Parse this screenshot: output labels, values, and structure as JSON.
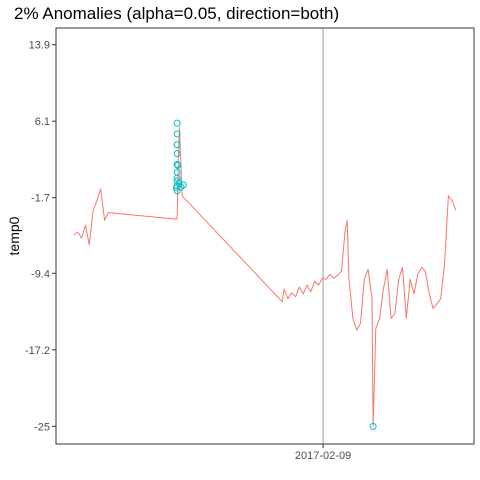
{
  "chart_data": {
    "type": "line",
    "title": "2% Anomalies (alpha=0.05, direction=both)",
    "xlabel": "",
    "ylabel": "temp0",
    "ylim": [
      -26.8,
      15.6
    ],
    "x_range": [
      0,
      100
    ],
    "grid": false,
    "legend": "none",
    "y_ticks": [
      {
        "value": 13.9,
        "label": "13.9"
      },
      {
        "value": 6.1,
        "label": "6.1"
      },
      {
        "value": -1.7,
        "label": "-1.7"
      },
      {
        "value": -9.4,
        "label": "-9.4"
      },
      {
        "value": -17.2,
        "label": "-17.2"
      },
      {
        "value": -25,
        "label": "-25"
      }
    ],
    "x_ticks": [
      {
        "value": 65.2,
        "label": "2017-02-09"
      }
    ],
    "vline": {
      "x": 65.2
    },
    "series": [
      {
        "color": "#F8766D",
        "x": [
          0,
          1,
          2,
          3,
          4,
          5,
          6,
          7,
          8,
          9,
          27,
          27.3,
          27.6,
          28,
          28.3,
          54.5,
          55,
          56,
          57,
          58,
          59,
          60,
          61,
          62,
          63,
          64,
          65,
          66,
          67,
          68,
          69,
          70,
          71,
          71.5,
          72,
          73,
          74,
          75,
          76,
          77,
          78,
          78.3,
          79,
          80,
          81,
          82,
          83,
          84,
          85,
          86,
          87,
          88,
          89,
          90,
          91,
          92,
          93,
          94,
          95,
          96,
          97,
          98,
          99,
          100
        ],
        "y": [
          -5.5,
          -5.2,
          -5.8,
          -4.5,
          -6.5,
          -3.0,
          -2.0,
          -0.8,
          -4.0,
          -3.2,
          -3.9,
          2.0,
          5.5,
          1.5,
          -1.5,
          -12.3,
          -11.0,
          -12.0,
          -11.4,
          -11.8,
          -10.8,
          -11.5,
          -10.6,
          -11.3,
          -10.2,
          -10.6,
          -9.9,
          -10.0,
          -9.5,
          -9.9,
          -9.6,
          -9.2,
          -5.0,
          -4.0,
          -10.0,
          -14.0,
          -15.2,
          -14.5,
          -10.0,
          -9.0,
          -12.0,
          -25.0,
          -15.0,
          -14.0,
          -11.0,
          -9.0,
          -14.0,
          -13.5,
          -10.0,
          -8.8,
          -14.0,
          -10.0,
          -11.5,
          -9.5,
          -8.8,
          -9.2,
          -11.5,
          -13.0,
          -12.5,
          -12.0,
          -8.5,
          -1.5,
          -2.0,
          -3.0
        ]
      }
    ],
    "anomalies": {
      "color": "#00BFC4",
      "points": [
        {
          "x": 27,
          "y": 4.8
        },
        {
          "x": 27,
          "y": 3.7
        },
        {
          "x": 27,
          "y": 2.8
        },
        {
          "x": 27,
          "y": 1.7
        },
        {
          "x": 27,
          "y": 0.9
        },
        {
          "x": 27,
          "y": 0.0
        },
        {
          "x": 27,
          "y": -0.5
        },
        {
          "x": 27,
          "y": -1.0
        },
        {
          "x": 27,
          "y": 0.3
        },
        {
          "x": 27.5,
          "y": -0.2
        },
        {
          "x": 28,
          "y": -0.6
        },
        {
          "x": 28.6,
          "y": -0.4
        },
        {
          "x": 26.8,
          "y": -0.7
        },
        {
          "x": 27.2,
          "y": 1.6
        },
        {
          "x": 27,
          "y": 5.9
        },
        {
          "x": 78.3,
          "y": -25.0
        }
      ]
    }
  }
}
